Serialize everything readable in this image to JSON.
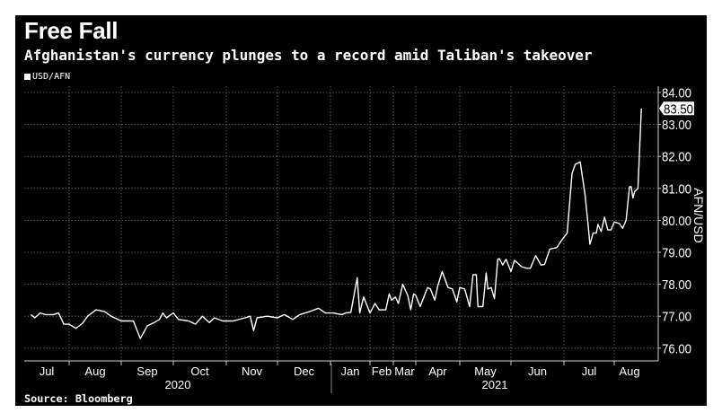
{
  "title": "Free Fall",
  "subtitle": "Afghanistan's currency plunges to a record amid Taliban's takeover",
  "source": "Source: Bloomberg",
  "colors": {
    "background": "#000000",
    "line": "#ffffff",
    "grid": "#6e6e6e",
    "text": "#ffffff"
  },
  "chart_data": {
    "type": "line",
    "legend": {
      "entries": [
        "USD/AFN"
      ],
      "placement": "top-left"
    },
    "ylabel": "AFN/USD",
    "ylim": [
      75.6,
      84.1
    ],
    "yticks": [
      "76.00",
      "77.00",
      "78.00",
      "79.00",
      "80.00",
      "81.00",
      "82.00",
      "83.00",
      "84.00"
    ],
    "y_axis_side": "right",
    "grid": true,
    "last_value_label": "83.50",
    "x_month_labels": [
      "Jul",
      "Aug",
      "Sep",
      "Oct",
      "Nov",
      "Dec",
      "Jan",
      "Feb",
      "Mar",
      "Apr",
      "May",
      "Jun",
      "Jul",
      "Aug"
    ],
    "x_year_labels": [
      "2020",
      "2021"
    ],
    "series": [
      {
        "name": "USD/AFN",
        "points": [
          [
            "2020-07-03",
            77.05
          ],
          [
            "2020-07-06",
            76.95
          ],
          [
            "2020-07-10",
            77.1
          ],
          [
            "2020-07-14",
            77.05
          ],
          [
            "2020-07-20",
            77.05
          ],
          [
            "2020-07-24",
            77.1
          ],
          [
            "2020-07-28",
            76.75
          ],
          [
            "2020-08-01",
            76.75
          ],
          [
            "2020-08-05",
            76.62
          ],
          [
            "2020-08-09",
            76.78
          ],
          [
            "2020-08-12",
            77.0
          ],
          [
            "2020-08-17",
            77.2
          ],
          [
            "2020-08-22",
            77.15
          ],
          [
            "2020-08-26",
            77.0
          ],
          [
            "2020-09-01",
            76.85
          ],
          [
            "2020-09-08",
            76.85
          ],
          [
            "2020-09-12",
            76.3
          ],
          [
            "2020-09-16",
            76.7
          ],
          [
            "2020-09-20",
            76.8
          ],
          [
            "2020-09-23",
            76.9
          ],
          [
            "2020-09-25",
            77.1
          ],
          [
            "2020-09-27",
            76.95
          ],
          [
            "2020-10-01",
            77.1
          ],
          [
            "2020-10-04",
            76.9
          ],
          [
            "2020-10-10",
            76.85
          ],
          [
            "2020-10-14",
            76.75
          ],
          [
            "2020-10-18",
            77.0
          ],
          [
            "2020-10-22",
            76.8
          ],
          [
            "2020-10-25",
            76.95
          ],
          [
            "2020-10-30",
            76.85
          ],
          [
            "2020-11-05",
            76.85
          ],
          [
            "2020-11-12",
            76.95
          ],
          [
            "2020-11-15",
            77.0
          ],
          [
            "2020-11-17",
            76.55
          ],
          [
            "2020-11-19",
            76.95
          ],
          [
            "2020-11-25",
            77.0
          ],
          [
            "2020-12-01",
            76.95
          ],
          [
            "2020-12-05",
            77.05
          ],
          [
            "2020-12-10",
            76.9
          ],
          [
            "2020-12-14",
            77.05
          ],
          [
            "2020-12-20",
            77.15
          ],
          [
            "2020-12-25",
            77.25
          ],
          [
            "2020-12-29",
            77.1
          ],
          [
            "2021-01-03",
            77.1
          ],
          [
            "2021-01-10",
            77.05
          ],
          [
            "2021-01-13",
            77.1
          ],
          [
            "2021-01-17",
            77.12
          ],
          [
            "2021-01-22",
            78.2
          ],
          [
            "2021-01-24",
            77.1
          ],
          [
            "2021-01-27",
            77.6
          ],
          [
            "2021-02-01",
            77.1
          ],
          [
            "2021-02-07",
            77.4
          ],
          [
            "2021-02-12",
            77.2
          ],
          [
            "2021-02-20",
            77.2
          ],
          [
            "2021-02-24",
            77.7
          ],
          [
            "2021-02-27",
            77.5
          ],
          [
            "2021-03-04",
            77.6
          ],
          [
            "2021-03-08",
            77.4
          ],
          [
            "2021-03-14",
            78.0
          ],
          [
            "2021-03-21",
            77.65
          ],
          [
            "2021-03-25",
            77.2
          ],
          [
            "2021-03-29",
            77.7
          ],
          [
            "2021-04-01",
            77.65
          ],
          [
            "2021-04-04",
            77.3
          ],
          [
            "2021-04-09",
            77.9
          ],
          [
            "2021-04-11",
            77.85
          ],
          [
            "2021-04-14",
            77.5
          ],
          [
            "2021-04-16",
            77.95
          ],
          [
            "2021-04-19",
            78.4
          ],
          [
            "2021-04-23",
            77.9
          ],
          [
            "2021-04-26",
            77.85
          ],
          [
            "2021-04-29",
            77.45
          ],
          [
            "2021-05-01",
            77.9
          ],
          [
            "2021-05-04",
            77.85
          ],
          [
            "2021-05-07",
            77.3
          ],
          [
            "2021-05-09",
            78.3
          ],
          [
            "2021-05-11",
            78.3
          ],
          [
            "2021-05-12",
            77.3
          ],
          [
            "2021-05-15",
            77.3
          ],
          [
            "2021-05-17",
            78.35
          ],
          [
            "2021-05-18",
            77.85
          ],
          [
            "2021-05-20",
            77.9
          ],
          [
            "2021-05-22",
            77.55
          ],
          [
            "2021-05-24",
            78.78
          ],
          [
            "2021-05-25",
            78.8
          ],
          [
            "2021-05-27",
            78.6
          ],
          [
            "2021-05-29",
            78.78
          ],
          [
            "2021-06-01",
            78.4
          ],
          [
            "2021-06-03",
            78.75
          ],
          [
            "2021-06-05",
            78.65
          ],
          [
            "2021-06-07",
            78.55
          ],
          [
            "2021-06-10",
            78.5
          ],
          [
            "2021-06-12",
            78.5
          ],
          [
            "2021-06-15",
            78.9
          ],
          [
            "2021-06-18",
            78.6
          ],
          [
            "2021-06-20",
            78.62
          ],
          [
            "2021-06-23",
            79.1
          ],
          [
            "2021-06-27",
            79.15
          ],
          [
            "2021-06-30",
            79.4
          ],
          [
            "2021-07-03",
            79.6
          ],
          [
            "2021-07-06",
            81.47
          ],
          [
            "2021-07-08",
            81.75
          ],
          [
            "2021-07-11",
            81.83
          ],
          [
            "2021-07-14",
            80.8
          ],
          [
            "2021-07-16",
            79.8
          ],
          [
            "2021-07-17",
            79.25
          ],
          [
            "2021-07-19",
            79.6
          ],
          [
            "2021-07-21",
            79.6
          ],
          [
            "2021-07-22",
            79.87
          ],
          [
            "2021-07-24",
            79.65
          ],
          [
            "2021-07-26",
            80.1
          ],
          [
            "2021-07-28",
            79.7
          ],
          [
            "2021-07-30",
            79.7
          ],
          [
            "2021-08-01",
            79.95
          ],
          [
            "2021-08-04",
            79.9
          ],
          [
            "2021-08-06",
            79.75
          ],
          [
            "2021-08-08",
            80.0
          ],
          [
            "2021-08-10",
            81.05
          ],
          [
            "2021-08-11",
            81.05
          ],
          [
            "2021-08-12",
            80.7
          ],
          [
            "2021-08-13",
            80.9
          ],
          [
            "2021-08-15",
            81.0
          ],
          [
            "2021-08-17",
            83.5
          ]
        ]
      }
    ]
  }
}
